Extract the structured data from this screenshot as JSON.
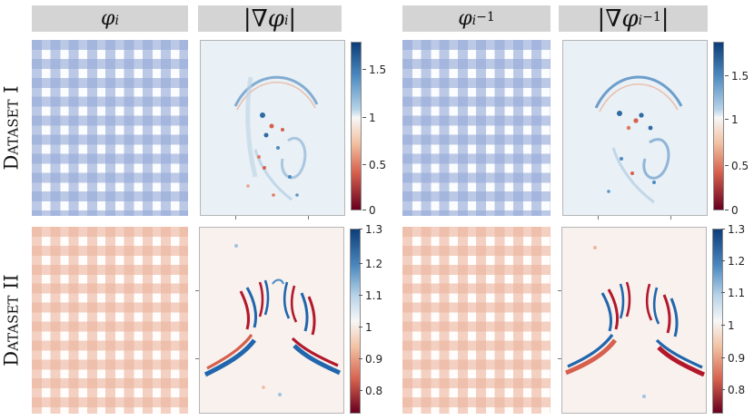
{
  "headers": {
    "col1": "φ",
    "col1_sub": "i",
    "col2_bar_open": "|∇φ",
    "col2_sub": "i",
    "col2_bar_close": "|",
    "col3": "φ",
    "col3_sub": "i",
    "col3_sup": "−1",
    "col4_bar_open": "|∇φ",
    "col4_sub": "i",
    "col4_sup": "−1",
    "col4_bar_close": "|"
  },
  "rows": {
    "row1_label": "Dataset I",
    "row2_label": "Dataset II"
  },
  "colorbars": {
    "dataset1": [
      "1.5",
      "1",
      "0.5",
      "0"
    ],
    "dataset2": [
      "1.3",
      "1.2",
      "1.1",
      "1",
      "0.9",
      "0.8"
    ]
  },
  "colors": {
    "grid_blue": "#96aad7",
    "grid_red": "#ecb6a0",
    "colormap_high": "#0c3d78",
    "colormap_mid": "#f7f7f7",
    "colormap_low": "#67001f"
  }
}
